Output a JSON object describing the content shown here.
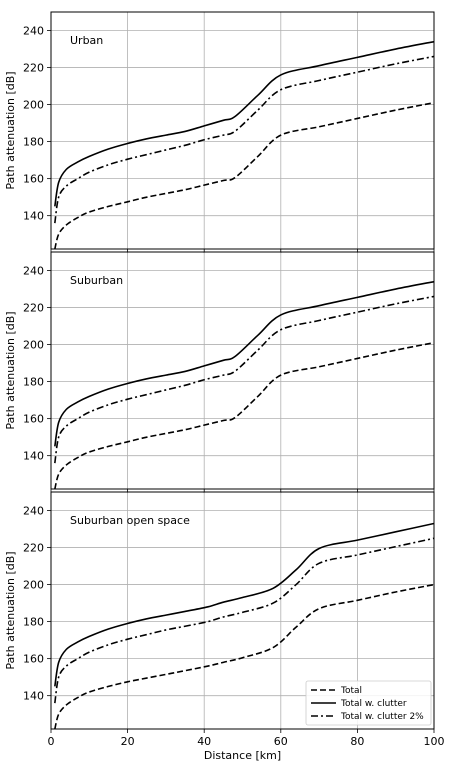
{
  "chart_data": {
    "type": "line",
    "xlabel": "Distance [km]",
    "ylabel": "Path attenuation [dB]",
    "xlim": [
      0,
      100
    ],
    "ylim": [
      122,
      250
    ],
    "x_ticks": [
      0,
      20,
      40,
      60,
      80,
      100
    ],
    "y_ticks": [
      140,
      160,
      180,
      200,
      220,
      240
    ],
    "grid": true,
    "legend_position": "lower-right",
    "line_styles": {
      "Total": "dashed",
      "Total w. clutter": "solid",
      "Total w. clutter 2%": "dash-dot"
    },
    "panels": [
      {
        "title": "Urban",
        "series": [
          {
            "name": "Total",
            "x": [
              1,
              2,
              4,
              7,
              10,
              15,
              20,
              25,
              30,
              35,
              40,
              45,
              48,
              54,
              60,
              70,
              80,
              90,
              100
            ],
            "y": [
              122,
              130,
              135,
              139,
              142,
              145,
              147.5,
              150,
              152,
              154,
              156.5,
              159,
              160.5,
              172,
              183.5,
              188,
              192.5,
              197,
              201
            ]
          },
          {
            "name": "Total w. clutter",
            "x": [
              1,
              2,
              4,
              7,
              10,
              15,
              20,
              25,
              30,
              35,
              40,
              45,
              48,
              54,
              60,
              70,
              80,
              90,
              100
            ],
            "y": [
              145,
              158,
              165,
              169,
              172,
              176,
              179,
              181.5,
              183.5,
              185.5,
              188.5,
              191.5,
              193.5,
              205,
              216,
              221,
              225.5,
              230,
              234
            ]
          },
          {
            "name": "Total w. clutter 2%",
            "x": [
              1,
              2,
              4,
              7,
              10,
              15,
              20,
              25,
              30,
              35,
              40,
              45,
              48,
              54,
              60,
              70,
              80,
              90,
              100
            ],
            "y": [
              136,
              150,
              156,
              160,
              163.5,
              167.5,
              170.5,
              173,
              175.5,
              178,
              181,
              183.5,
              185.5,
              197,
              208,
              213,
              217.5,
              222,
              226
            ]
          }
        ]
      },
      {
        "title": "Suburban",
        "series": [
          {
            "name": "Total",
            "x": [
              1,
              2,
              4,
              7,
              10,
              15,
              20,
              25,
              30,
              35,
              40,
              45,
              48,
              54,
              60,
              70,
              80,
              90,
              100
            ],
            "y": [
              122,
              130,
              135,
              139,
              142,
              145,
              147.5,
              150,
              152,
              154,
              156.5,
              159,
              160.5,
              172,
              183.5,
              188,
              192.5,
              197,
              201
            ]
          },
          {
            "name": "Total w. clutter",
            "x": [
              1,
              2,
              4,
              7,
              10,
              15,
              20,
              25,
              30,
              35,
              40,
              45,
              48,
              54,
              60,
              70,
              80,
              90,
              100
            ],
            "y": [
              145,
              158,
              165,
              169,
              172,
              176,
              179,
              181.5,
              183.5,
              185.5,
              188.5,
              191.5,
              193.5,
              205,
              216,
              221,
              225.5,
              230,
              234
            ]
          },
          {
            "name": "Total w. clutter 2%",
            "x": [
              1,
              2,
              4,
              7,
              10,
              15,
              20,
              25,
              30,
              35,
              40,
              45,
              48,
              54,
              60,
              70,
              80,
              90,
              100
            ],
            "y": [
              136,
              150,
              156,
              160,
              163.5,
              167.5,
              170.5,
              173,
              175.5,
              178,
              181,
              183.5,
              185.5,
              197,
              208,
              213,
              217.5,
              222,
              226
            ]
          }
        ]
      },
      {
        "title": "Suburban open space",
        "series": [
          {
            "name": "Total",
            "x": [
              1,
              2,
              4,
              7,
              10,
              15,
              20,
              25,
              30,
              35,
              41,
              45,
              50,
              58,
              64,
              70,
              80,
              90,
              100
            ],
            "y": [
              122,
              130,
              135,
              139,
              142,
              145,
              147.5,
              149.5,
              151.5,
              153.5,
              156,
              158,
              160.5,
              166,
              177,
              187,
              191.5,
              196,
              200
            ]
          },
          {
            "name": "Total w. clutter",
            "x": [
              1,
              2,
              4,
              7,
              10,
              15,
              20,
              25,
              30,
              35,
              41,
              45,
              50,
              58,
              64,
              70,
              80,
              90,
              100
            ],
            "y": [
              145,
              158,
              165,
              169,
              172,
              176,
              179,
              181.5,
              183.5,
              185.5,
              188,
              190.5,
              193,
              198,
              208,
              219.5,
              224,
              228.5,
              233
            ]
          },
          {
            "name": "Total w. clutter 2%",
            "x": [
              1,
              2,
              4,
              7,
              10,
              15,
              20,
              25,
              30,
              35,
              41,
              45,
              50,
              58,
              64,
              70,
              80,
              90,
              100
            ],
            "y": [
              136,
              150,
              156,
              160,
              163.5,
              167.5,
              170.5,
              173,
              175.5,
              177.5,
              180,
              182.5,
              185,
              190,
              200,
              211.5,
              216,
              220.5,
              225
            ]
          }
        ]
      }
    ]
  }
}
